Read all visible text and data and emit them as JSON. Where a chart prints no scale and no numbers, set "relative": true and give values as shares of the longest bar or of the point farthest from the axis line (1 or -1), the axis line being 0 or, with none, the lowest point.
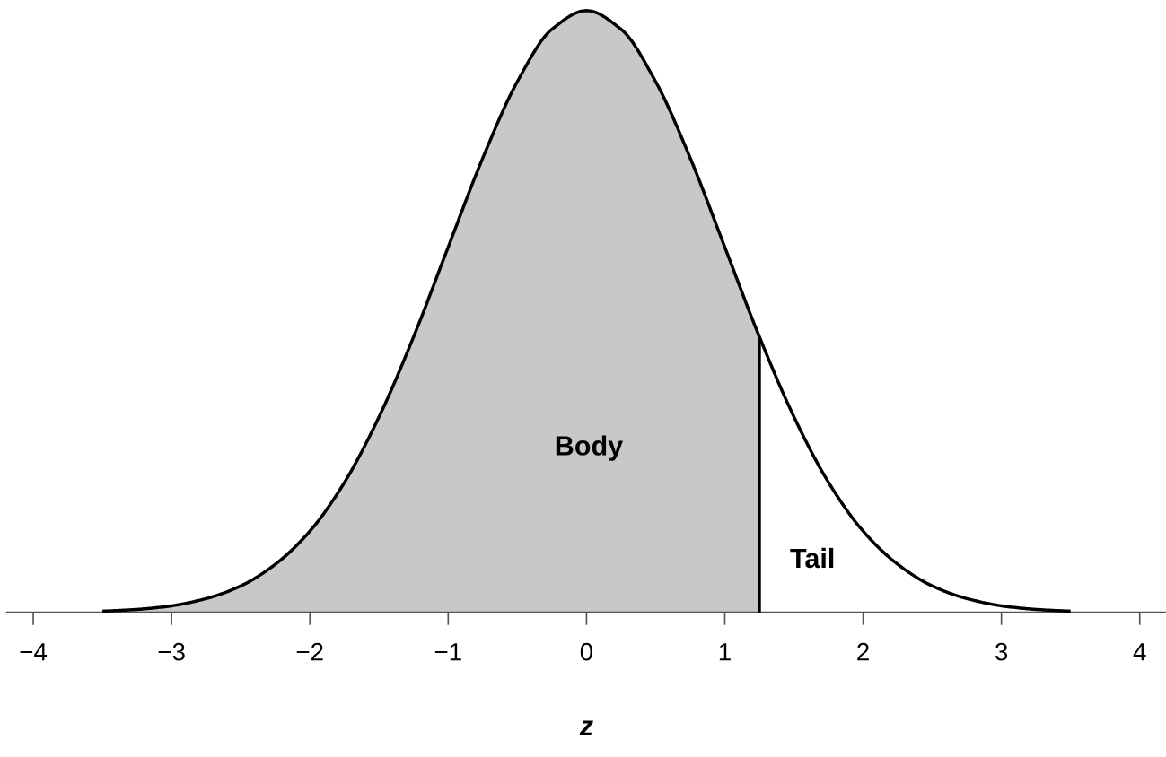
{
  "chart_data": {
    "type": "line",
    "relative": true,
    "xlabel": "z",
    "xlim": [
      -4.19,
      4.19
    ],
    "xticks": [
      {
        "value": -4,
        "label": "−4"
      },
      {
        "value": -3,
        "label": "−3"
      },
      {
        "value": -2,
        "label": "−2"
      },
      {
        "value": -1,
        "label": "−1"
      },
      0,
      1,
      2,
      3,
      4
    ],
    "series": [
      {
        "type": "area",
        "color": "#c8c8c8",
        "x": [
          -3.5,
          -3.25,
          -3,
          -2.75,
          -2.5,
          -2.25,
          -2,
          -1.75,
          -1.5,
          -1.25,
          -1,
          -0.75,
          -0.5,
          -0.25,
          0,
          0.25,
          0.5,
          0.75,
          1,
          1.25
        ],
        "values": [
          0.002,
          0.005,
          0.011,
          0.023,
          0.044,
          0.08,
          0.135,
          0.216,
          0.325,
          0.458,
          0.607,
          0.755,
          0.882,
          0.969,
          1,
          0.969,
          0.882,
          0.755,
          0.607,
          0.458
        ]
      },
      {
        "color": "#000000",
        "x": [
          -3.5,
          -3.25,
          -3,
          -2.75,
          -2.5,
          -2.25,
          -2,
          -1.75,
          -1.5,
          -1.25,
          -1,
          -0.75,
          -0.5,
          -0.25,
          0,
          0.25,
          0.5,
          0.75,
          1,
          1.25,
          1.5,
          1.75,
          2,
          2.25,
          2.5,
          2.75,
          3,
          3.25,
          3.5
        ],
        "values": [
          0.002,
          0.005,
          0.011,
          0.023,
          0.044,
          0.08,
          0.135,
          0.216,
          0.325,
          0.458,
          0.607,
          0.755,
          0.882,
          0.969,
          1,
          0.969,
          0.882,
          0.755,
          0.607,
          0.458,
          0.325,
          0.216,
          0.135,
          0.08,
          0.044,
          0.023,
          0.011,
          0.005,
          0.002
        ]
      },
      {
        "color": "#000000",
        "x": [
          1.25,
          1.25
        ],
        "values": [
          0,
          0.458
        ]
      }
    ],
    "annotations": [
      "Body",
      "Tail"
    ]
  }
}
